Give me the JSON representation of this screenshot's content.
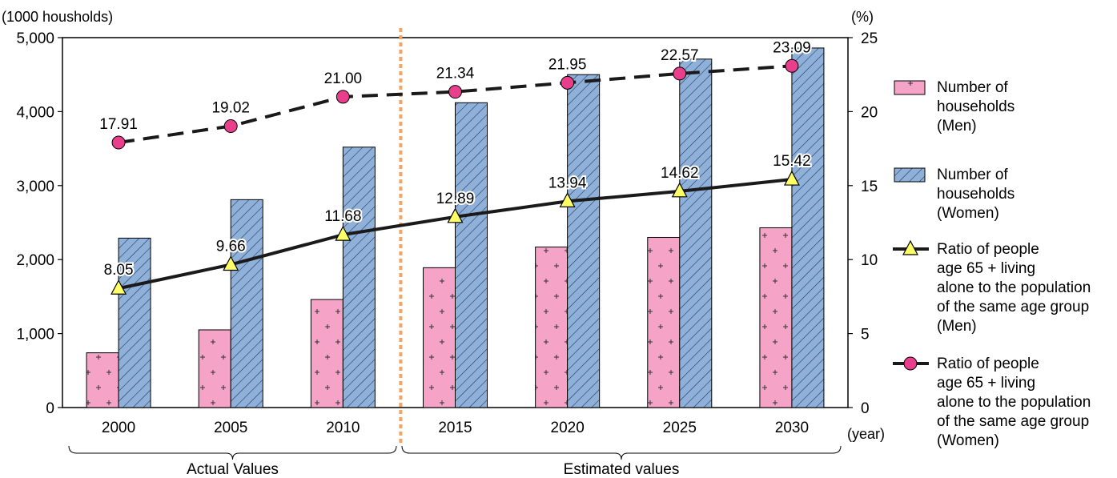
{
  "chart_data": {
    "type": "bar",
    "categories": [
      "2000",
      "2005",
      "2010",
      "2015",
      "2020",
      "2025",
      "2030"
    ],
    "y_left_unit": "(1000 housholds)",
    "y_right_unit": "(%)",
    "x_unit": "(year)",
    "ylim_left": [
      0,
      5000
    ],
    "ylim_right": [
      0,
      25
    ],
    "y_left_ticks": [
      "0",
      "1,000",
      "2,000",
      "3,000",
      "4,000",
      "5,000"
    ],
    "y_right_ticks": [
      "0",
      "5",
      "10",
      "15",
      "20",
      "25"
    ],
    "bar_series": [
      {
        "name": "Number of households (Men)",
        "legend_lines": [
          "Number of",
          " households",
          " (Men)"
        ],
        "values": [
          740,
          1050,
          1460,
          1890,
          2170,
          2300,
          2430
        ],
        "color": "#f5a3c7",
        "pattern": "plus"
      },
      {
        "name": "Number of households (Women)",
        "legend_lines": [
          "Number of",
          "households",
          "(Women)"
        ],
        "values": [
          2290,
          2810,
          3520,
          4120,
          4500,
          4710,
          4860
        ],
        "color": "#8fb1d9",
        "pattern": "hatch"
      }
    ],
    "line_series": [
      {
        "name": "Ratio of people age 65 + living alone to the population of the same age group (Men)",
        "legend_lines": [
          "Ratio of people",
          "age 65 + living",
          "alone to the population",
          "of the same age group",
          "(Men)"
        ],
        "values": [
          8.05,
          9.66,
          11.68,
          12.89,
          13.94,
          14.62,
          15.42
        ],
        "labels": [
          "8.05",
          "9.66",
          "11.68",
          "12.89",
          "13.94",
          "14.62",
          "15.42"
        ],
        "marker": "triangle",
        "marker_color": "#ffff66",
        "dashed": false
      },
      {
        "name": "Ratio of people age 65 + living alone to the population of the same age group (Women)",
        "legend_lines": [
          "Ratio of people",
          "age 65 + living",
          "alone to the population",
          "of the same age group",
          "(Women)"
        ],
        "values": [
          17.91,
          19.02,
          21.0,
          21.34,
          21.95,
          22.57,
          23.09
        ],
        "labels": [
          "17.91",
          "19.02",
          "21.00",
          "21.34",
          "21.95",
          "22.57",
          "23.09"
        ],
        "marker": "circle",
        "marker_color": "#e83e8c",
        "dashed": true
      }
    ],
    "groups": [
      {
        "label": "Actual Values",
        "categories": [
          "2000",
          "2005",
          "2010"
        ]
      },
      {
        "label": "Estimated values",
        "categories": [
          "2015",
          "2020",
          "2025",
          "2030"
        ]
      }
    ],
    "divider": {
      "between": [
        "2010",
        "2015"
      ],
      "color": "#f4a460"
    },
    "grid": false,
    "legend_position": "right"
  }
}
